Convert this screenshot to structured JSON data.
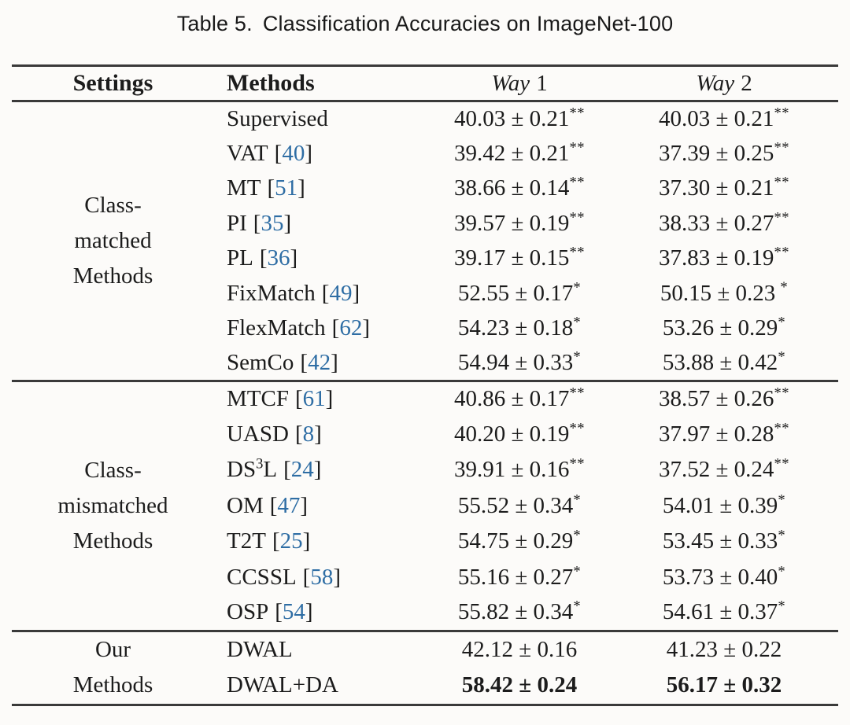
{
  "caption": {
    "label": "Table 5.",
    "text": "Classification Accuracies on ImageNet-100"
  },
  "colors": {
    "background": "#fcfbf9",
    "text": "#1c1c1c",
    "rule": "#3a3a3a",
    "citation_blue": "#2e6da4"
  },
  "table": {
    "headers": {
      "settings": "Settings",
      "methods": "Methods",
      "way1": {
        "word": "Way",
        "num": "1"
      },
      "way2": {
        "word": "Way",
        "num": "2"
      }
    },
    "cite_brackets": {
      "open": "[",
      "close": "]"
    },
    "sections": [
      {
        "setting_lines": [
          "Class-",
          "matched",
          "Methods"
        ],
        "rows": [
          {
            "method": {
              "pre": "Supervised",
              "sup": "",
              "post": "",
              "cite": ""
            },
            "way1": {
              "val": "40.03 ± 0.21",
              "sup": "**",
              "gap": false
            },
            "way2": {
              "val": "40.03 ± 0.21",
              "sup": "**",
              "gap": false
            },
            "bold": false
          },
          {
            "method": {
              "pre": "VAT",
              "sup": "",
              "post": "",
              "cite": "40"
            },
            "way1": {
              "val": "39.42 ± 0.21",
              "sup": "**",
              "gap": false
            },
            "way2": {
              "val": "37.39 ± 0.25",
              "sup": "**",
              "gap": false
            },
            "bold": false
          },
          {
            "method": {
              "pre": "MT",
              "sup": "",
              "post": "",
              "cite": "51"
            },
            "way1": {
              "val": "38.66 ± 0.14",
              "sup": "**",
              "gap": false
            },
            "way2": {
              "val": "37.30 ± 0.21",
              "sup": "**",
              "gap": false
            },
            "bold": false
          },
          {
            "method": {
              "pre": "PI",
              "sup": "",
              "post": "",
              "cite": "35"
            },
            "way1": {
              "val": "39.57 ± 0.19",
              "sup": "**",
              "gap": false
            },
            "way2": {
              "val": "38.33 ± 0.27",
              "sup": "**",
              "gap": false
            },
            "bold": false
          },
          {
            "method": {
              "pre": "PL",
              "sup": "",
              "post": "",
              "cite": "36"
            },
            "way1": {
              "val": "39.17 ± 0.15",
              "sup": "**",
              "gap": false
            },
            "way2": {
              "val": "37.83 ± 0.19",
              "sup": "**",
              "gap": false
            },
            "bold": false
          },
          {
            "method": {
              "pre": "FixMatch",
              "sup": "",
              "post": "",
              "cite": "49"
            },
            "way1": {
              "val": "52.55 ± 0.17",
              "sup": "*",
              "gap": false
            },
            "way2": {
              "val": "50.15 ± 0.23",
              "sup": "*",
              "gap": true
            },
            "bold": false
          },
          {
            "method": {
              "pre": "FlexMatch",
              "sup": "",
              "post": "",
              "cite": "62"
            },
            "way1": {
              "val": "54.23 ± 0.18",
              "sup": "*",
              "gap": false
            },
            "way2": {
              "val": "53.26 ± 0.29",
              "sup": "*",
              "gap": false
            },
            "bold": false
          },
          {
            "method": {
              "pre": "SemCo",
              "sup": "",
              "post": "",
              "cite": "42"
            },
            "way1": {
              "val": "54.94 ± 0.33",
              "sup": "*",
              "gap": false
            },
            "way2": {
              "val": "53.88 ± 0.42",
              "sup": "*",
              "gap": false
            },
            "bold": false
          }
        ]
      },
      {
        "setting_lines": [
          "Class-",
          "mismatched",
          "Methods"
        ],
        "rows": [
          {
            "method": {
              "pre": "MTCF",
              "sup": "",
              "post": "",
              "cite": "61"
            },
            "way1": {
              "val": "40.86 ± 0.17",
              "sup": "**",
              "gap": false
            },
            "way2": {
              "val": "38.57 ± 0.26",
              "sup": "**",
              "gap": false
            },
            "bold": false
          },
          {
            "method": {
              "pre": "UASD",
              "sup": "",
              "post": "",
              "cite": "8"
            },
            "way1": {
              "val": "40.20 ± 0.19",
              "sup": "**",
              "gap": false
            },
            "way2": {
              "val": "37.97 ± 0.28",
              "sup": "**",
              "gap": false
            },
            "bold": false
          },
          {
            "method": {
              "pre": "DS",
              "sup": "3",
              "post": "L",
              "cite": "24"
            },
            "way1": {
              "val": "39.91 ± 0.16",
              "sup": "**",
              "gap": false
            },
            "way2": {
              "val": "37.52 ± 0.24",
              "sup": "**",
              "gap": false
            },
            "bold": false
          },
          {
            "method": {
              "pre": "OM",
              "sup": "",
              "post": "",
              "cite": "47"
            },
            "way1": {
              "val": "55.52 ± 0.34",
              "sup": "*",
              "gap": false
            },
            "way2": {
              "val": "54.01 ± 0.39",
              "sup": "*",
              "gap": false
            },
            "bold": false
          },
          {
            "method": {
              "pre": "T2T",
              "sup": "",
              "post": "",
              "cite": "25"
            },
            "way1": {
              "val": "54.75 ± 0.29",
              "sup": "*",
              "gap": false
            },
            "way2": {
              "val": "53.45 ± 0.33",
              "sup": "*",
              "gap": false
            },
            "bold": false
          },
          {
            "method": {
              "pre": "CCSSL",
              "sup": "",
              "post": "",
              "cite": "58"
            },
            "way1": {
              "val": "55.16 ± 0.27",
              "sup": "*",
              "gap": false
            },
            "way2": {
              "val": "53.73 ± 0.40",
              "sup": "*",
              "gap": false
            },
            "bold": false
          },
          {
            "method": {
              "pre": "OSP",
              "sup": "",
              "post": "",
              "cite": "54"
            },
            "way1": {
              "val": "55.82 ± 0.34",
              "sup": "*",
              "gap": false
            },
            "way2": {
              "val": "54.61 ± 0.37",
              "sup": "*",
              "gap": false
            },
            "bold": false
          }
        ]
      },
      {
        "setting_lines": [
          "Our",
          "Methods"
        ],
        "rows": [
          {
            "method": {
              "pre": "DWAL",
              "sup": "",
              "post": "",
              "cite": ""
            },
            "way1": {
              "val": "42.12 ± 0.16",
              "sup": "",
              "gap": false
            },
            "way2": {
              "val": "41.23 ± 0.22",
              "sup": "",
              "gap": false
            },
            "bold": false
          },
          {
            "method": {
              "pre": "DWAL+DA",
              "sup": "",
              "post": "",
              "cite": ""
            },
            "way1": {
              "val": "58.42 ± 0.24",
              "sup": "",
              "gap": false
            },
            "way2": {
              "val": "56.17 ± 0.32",
              "sup": "",
              "gap": false
            },
            "bold": true
          }
        ]
      }
    ]
  }
}
